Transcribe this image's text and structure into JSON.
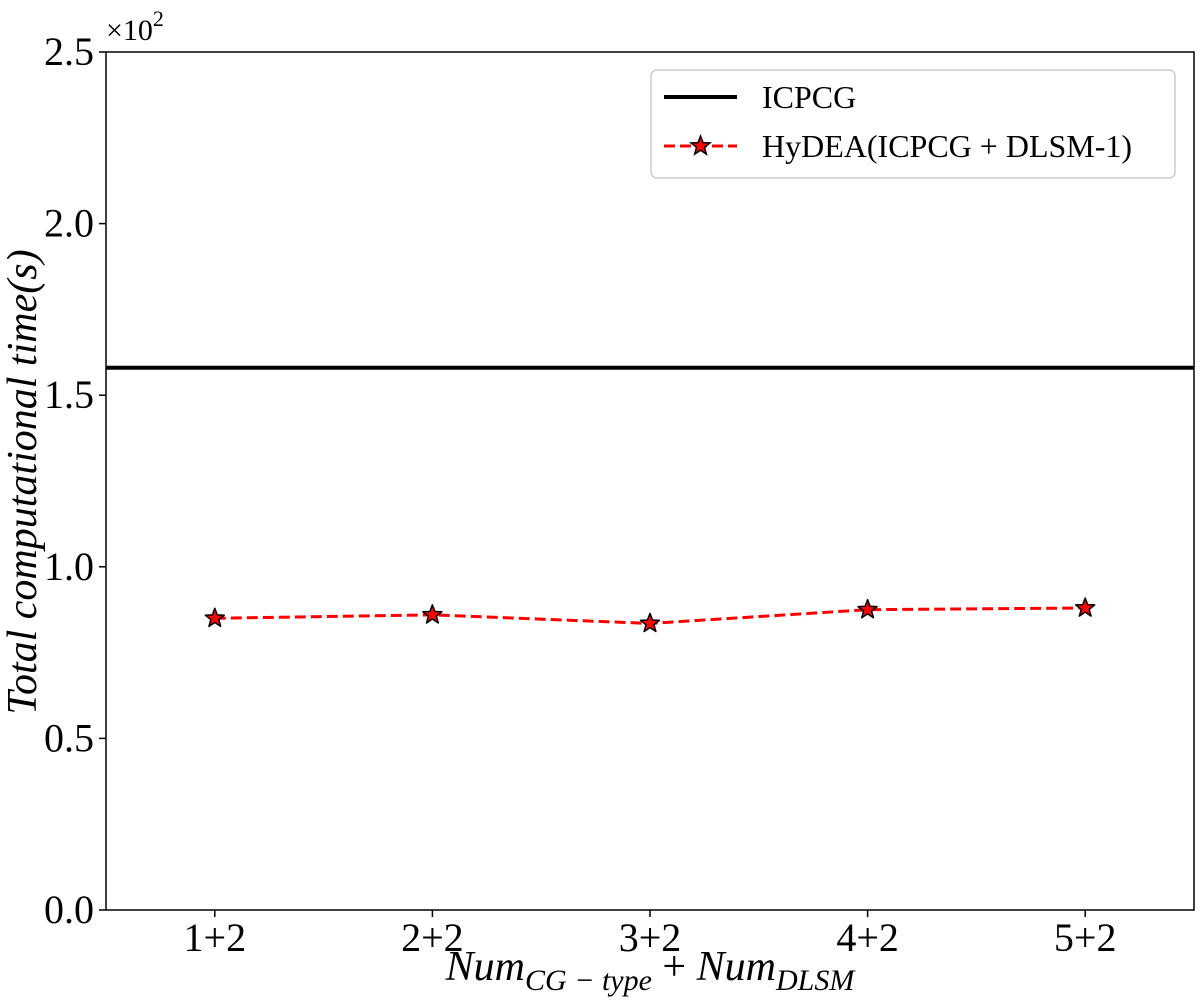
{
  "chart_data": {
    "type": "line",
    "categories": [
      "1+2",
      "2+2",
      "3+2",
      "4+2",
      "5+2"
    ],
    "series": [
      {
        "name": "ICPCG",
        "kind": "horizontal-line",
        "value": 1.58,
        "color": "#000000",
        "line_style": "solid"
      },
      {
        "name": "HyDEA(ICPCG + DLSM-1)",
        "values": [
          0.85,
          0.86,
          0.835,
          0.875,
          0.88
        ],
        "color": "#ff0000",
        "line_style": "dashed",
        "marker": "star",
        "marker_fill": "#ff0000",
        "marker_edge": "#000000"
      }
    ],
    "yticks": [
      "0.0",
      "0.5",
      "1.0",
      "1.5",
      "2.0",
      "2.5"
    ],
    "ylim": [
      0,
      2.5
    ],
    "y_multiplier_base": "×10",
    "y_multiplier_exponent": "2",
    "ylabel": "Total computational time(s)",
    "xlabel_parts": [
      {
        "text": "Num",
        "sub": "CG − type"
      },
      {
        "text": " + ",
        "sub": ""
      },
      {
        "text": "Num",
        "sub": "DLSM"
      }
    ],
    "legend_position": "upper-right",
    "grid": false
  }
}
